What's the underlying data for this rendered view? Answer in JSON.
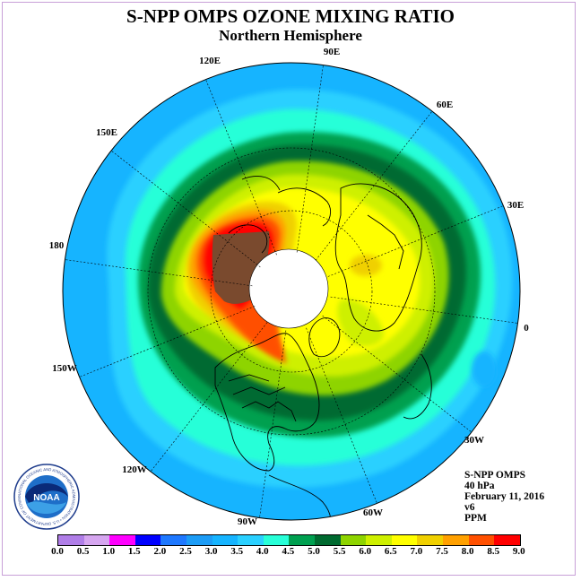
{
  "title": "S-NPP OMPS OZONE MIXING RATIO",
  "subtitle": "Northern Hemisphere",
  "longitude_labels": [
    "90E",
    "60E",
    "30E",
    "0",
    "30W",
    "60W",
    "90W",
    "120W",
    "150W",
    "180",
    "150E",
    "120E"
  ],
  "info": {
    "instrument": "S-NPP OMPS",
    "level": "40 hPa",
    "date": "February 11, 2016",
    "version": "v6",
    "units": "PPM"
  },
  "logo": {
    "name": "noaa-logo",
    "text": "NOAA",
    "ring_text": "NATIONAL OCEANIC AND ATMOSPHERIC ADMINISTRATION • U.S. DEPARTMENT OF COMMERCE"
  },
  "colorbar": {
    "ticks": [
      "0.0",
      "0.5",
      "1.0",
      "1.5",
      "2.0",
      "2.5",
      "3.0",
      "3.5",
      "4.0",
      "4.5",
      "5.0",
      "5.5",
      "6.0",
      "6.5",
      "7.0",
      "7.5",
      "8.0",
      "8.5",
      "9.0"
    ],
    "colors": [
      "#b07ee8",
      "#d6a6f0",
      "#ff00ff",
      "#0000ff",
      "#1e78ff",
      "#1c9cf6",
      "#16b4ff",
      "#2ad0ff",
      "#28ffd8",
      "#00a050",
      "#006a30",
      "#8ed400",
      "#cef000",
      "#ffff00",
      "#f0d000",
      "#ffa000",
      "#ff5000",
      "#ff0000",
      "#7a4a2e"
    ]
  },
  "colors": {
    "ocean_base": "#16b4ff",
    "coast": "#000000",
    "polar_cap": "#ffffff"
  }
}
